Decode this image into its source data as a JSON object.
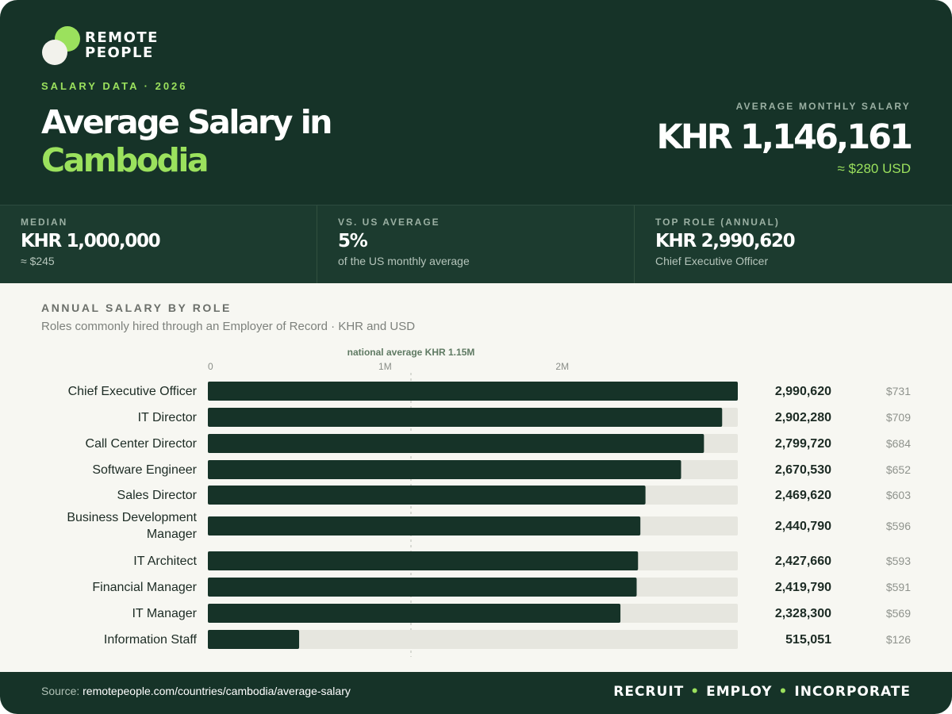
{
  "brand": {
    "line1": "REMOTE",
    "line2": "PEOPLE",
    "accent": "#9be15d",
    "dark": "#163328"
  },
  "header": {
    "eyebrow": "SALARY DATA · 2026",
    "title_line1": "Average Salary in",
    "title_line2": "Cambodia",
    "avg_label": "AVERAGE MONTHLY SALARY",
    "avg_value": "KHR 1,146,161",
    "avg_usd": "≈ $280 USD"
  },
  "stats": [
    {
      "label": "MEDIAN",
      "value": "KHR 1,000,000",
      "sub": "≈ $245"
    },
    {
      "label": "VS. US AVERAGE",
      "value": "5%",
      "sub": "of the US monthly average"
    },
    {
      "label": "TOP ROLE (ANNUAL)",
      "value": "KHR 2,990,620",
      "sub": "Chief Executive Officer"
    }
  ],
  "section": {
    "title": "ANNUAL SALARY BY ROLE",
    "subtitle": "Roles commonly hired through an Employer of Record · KHR and USD"
  },
  "chart_data": {
    "type": "bar",
    "orientation": "horizontal",
    "title": "ANNUAL SALARY BY ROLE",
    "xlim": [
      0,
      2990620
    ],
    "x_ticks": [
      {
        "value": 0,
        "label": "0"
      },
      {
        "value": 1000000,
        "label": "1M"
      },
      {
        "value": 2000000,
        "label": "2M"
      }
    ],
    "reference_line": {
      "value": 1146161,
      "label": "national average KHR 1.15M"
    },
    "categories": [
      "Chief Executive Officer",
      "IT Director",
      "Call Center Director",
      "Software Engineer",
      "Sales Director",
      "Business Development Manager",
      "IT Architect",
      "Financial Manager",
      "IT Manager",
      "Information Staff"
    ],
    "values": [
      2990620,
      2902280,
      2799720,
      2670530,
      2469620,
      2440790,
      2427660,
      2419790,
      2328300,
      515051
    ],
    "value_labels": [
      "2,990,620",
      "2,902,280",
      "2,799,720",
      "2,670,530",
      "2,469,620",
      "2,440,790",
      "2,427,660",
      "2,419,790",
      "2,328,300",
      "515,051"
    ],
    "usd_labels": [
      "$731",
      "$709",
      "$684",
      "$652",
      "$603",
      "$596",
      "$593",
      "$591",
      "$569",
      "$126"
    ],
    "bar_color": "#163328",
    "track_color": "#e6e6df",
    "grid": false
  },
  "footer": {
    "source_prefix": "Source: ",
    "source_url": "remotepeople.com/countries/cambodia/average-salary",
    "tag1": "RECRUIT",
    "tag2": "EMPLOY",
    "tag3": "INCORPORATE",
    "separator": "•"
  }
}
